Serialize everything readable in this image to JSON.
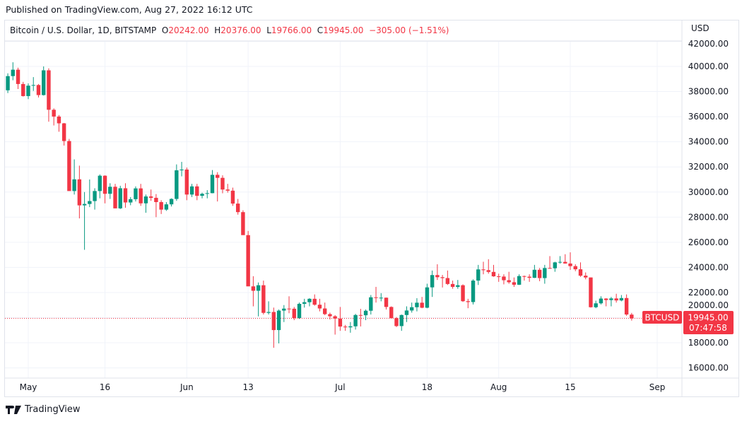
{
  "published": "Published on TradingView.com, Aug 27, 2022 16:12 UTC",
  "legend": {
    "symbol": "Bitcoin / U.S. Dollar, 1D, BITSTAMP",
    "o_label": "O",
    "o": "20242.00",
    "h_label": "H",
    "h": "20376.00",
    "l_label": "L",
    "l": "19766.00",
    "c_label": "C",
    "c": "19945.00",
    "change": "−305.00 (−1.51%)"
  },
  "currency": "USD",
  "price_tag": {
    "symbol": "BTCUSD",
    "price": "19945.00",
    "countdown": "07:47:58"
  },
  "brand": "TradingView",
  "colors": {
    "up": "#089981",
    "down": "#f23645",
    "grid": "#f0f3fa",
    "text": "#131722"
  },
  "chart_data": {
    "type": "candlestick",
    "interval": "1D",
    "ylim": [
      16000,
      42000
    ],
    "y_ticks": [
      "16000.00",
      "18000.00",
      "20000.00",
      "22000.00",
      "24000.00",
      "26000.00",
      "28000.00",
      "30000.00",
      "32000.00",
      "34000.00",
      "36000.00",
      "38000.00",
      "40000.00",
      "42000.00"
    ],
    "x_ticks": [
      {
        "label": "May",
        "date": "2022-05-01"
      },
      {
        "label": "16",
        "date": "2022-05-16"
      },
      {
        "label": "Jun",
        "date": "2022-06-01"
      },
      {
        "label": "13",
        "date": "2022-06-13"
      },
      {
        "label": "Jul",
        "date": "2022-07-01"
      },
      {
        "label": "18",
        "date": "2022-07-18"
      },
      {
        "label": "Aug",
        "date": "2022-08-01"
      },
      {
        "label": "15",
        "date": "2022-08-15"
      },
      {
        "label": "Sep",
        "date": "2022-09-01"
      }
    ],
    "last_price": 19945,
    "columns": [
      "date",
      "open",
      "high",
      "low",
      "close"
    ],
    "candles": [
      [
        "2022-04-26",
        40430,
        40800,
        37800,
        38100
      ],
      [
        "2022-04-27",
        38100,
        39450,
        37880,
        39230
      ],
      [
        "2022-04-28",
        39230,
        40330,
        38900,
        39740
      ],
      [
        "2022-04-29",
        39740,
        39900,
        38200,
        38600
      ],
      [
        "2022-04-30",
        38600,
        38770,
        37600,
        37640
      ],
      [
        "2022-05-01",
        37640,
        38650,
        37400,
        38470
      ],
      [
        "2022-05-02",
        38470,
        39150,
        38050,
        38520
      ],
      [
        "2022-05-03",
        38520,
        38600,
        37530,
        37720
      ],
      [
        "2022-05-04",
        37720,
        40000,
        37680,
        39690
      ],
      [
        "2022-05-05",
        39690,
        39850,
        35600,
        36550
      ],
      [
        "2022-05-06",
        36550,
        36660,
        35300,
        36010
      ],
      [
        "2022-05-07",
        36010,
        36130,
        34800,
        35470
      ],
      [
        "2022-05-08",
        35470,
        35500,
        33700,
        34060
      ],
      [
        "2022-05-09",
        34060,
        34230,
        30100,
        30080
      ],
      [
        "2022-05-10",
        30080,
        32600,
        29800,
        31010
      ],
      [
        "2022-05-11",
        31010,
        32100,
        27900,
        28940
      ],
      [
        "2022-05-12",
        28940,
        30000,
        25400,
        29050
      ],
      [
        "2022-05-13",
        29050,
        31000,
        28800,
        29280
      ],
      [
        "2022-05-14",
        29280,
        30300,
        28600,
        30080
      ],
      [
        "2022-05-15",
        30080,
        31400,
        29500,
        31300
      ],
      [
        "2022-05-16",
        31300,
        31330,
        29100,
        29860
      ],
      [
        "2022-05-17",
        29860,
        30700,
        29450,
        30420
      ],
      [
        "2022-05-18",
        30420,
        30650,
        28700,
        28700
      ],
      [
        "2022-05-19",
        28700,
        30500,
        28650,
        30300
      ],
      [
        "2022-05-20",
        30300,
        30700,
        28750,
        29170
      ],
      [
        "2022-05-21",
        29170,
        29600,
        28950,
        29430
      ],
      [
        "2022-05-22",
        29430,
        30450,
        29250,
        30290
      ],
      [
        "2022-05-23",
        30290,
        30650,
        28900,
        29100
      ],
      [
        "2022-05-24",
        29100,
        29800,
        28350,
        29650
      ],
      [
        "2022-05-25",
        29650,
        30200,
        29300,
        29540
      ],
      [
        "2022-05-26",
        29540,
        29840,
        28000,
        29200
      ],
      [
        "2022-05-27",
        29200,
        29350,
        28250,
        28600
      ],
      [
        "2022-05-28",
        28600,
        29200,
        28500,
        29020
      ],
      [
        "2022-05-29",
        29020,
        29500,
        28850,
        29450
      ],
      [
        "2022-05-30",
        29450,
        32200,
        29300,
        31730
      ],
      [
        "2022-05-31",
        31730,
        32400,
        31250,
        31790
      ],
      [
        "2022-06-01",
        31790,
        31950,
        29350,
        29800
      ],
      [
        "2022-06-02",
        29800,
        30650,
        29600,
        30450
      ],
      [
        "2022-06-03",
        30450,
        30650,
        29350,
        29700
      ],
      [
        "2022-06-04",
        29700,
        29950,
        29500,
        29860
      ],
      [
        "2022-06-05",
        29860,
        30150,
        29500,
        29910
      ],
      [
        "2022-06-06",
        29910,
        31750,
        29900,
        31370
      ],
      [
        "2022-06-07",
        31370,
        31580,
        29250,
        31130
      ],
      [
        "2022-06-08",
        31130,
        31330,
        29900,
        30200
      ],
      [
        "2022-06-09",
        30200,
        30650,
        29950,
        30110
      ],
      [
        "2022-06-10",
        30110,
        30350,
        28900,
        29080
      ],
      [
        "2022-06-11",
        29080,
        29450,
        28200,
        28400
      ],
      [
        "2022-06-12",
        28400,
        28550,
        26600,
        26570
      ],
      [
        "2022-06-13",
        26570,
        26900,
        22650,
        22490
      ],
      [
        "2022-06-14",
        22490,
        23300,
        20900,
        22140
      ],
      [
        "2022-06-15",
        22140,
        22800,
        20100,
        22580
      ],
      [
        "2022-06-16",
        22580,
        22950,
        20250,
        20380
      ],
      [
        "2022-06-17",
        20380,
        21300,
        20250,
        20450
      ],
      [
        "2022-06-18",
        20450,
        20800,
        17600,
        19010
      ],
      [
        "2022-06-19",
        19010,
        20650,
        17950,
        20560
      ],
      [
        "2022-06-20",
        20560,
        21000,
        19650,
        20720
      ],
      [
        "2022-06-21",
        20720,
        21700,
        20350,
        20710
      ],
      [
        "2022-06-22",
        20710,
        20850,
        19800,
        19970
      ],
      [
        "2022-06-23",
        19970,
        21200,
        19900,
        21100
      ],
      [
        "2022-06-24",
        21100,
        21500,
        20800,
        21230
      ],
      [
        "2022-06-25",
        21230,
        21550,
        20900,
        21500
      ],
      [
        "2022-06-26",
        21500,
        21850,
        20950,
        21030
      ],
      [
        "2022-06-27",
        21030,
        21500,
        20500,
        20730
      ],
      [
        "2022-06-28",
        20730,
        21200,
        20200,
        20280
      ],
      [
        "2022-06-29",
        20280,
        20400,
        19850,
        20110
      ],
      [
        "2022-06-30",
        20110,
        20200,
        18650,
        19930
      ],
      [
        "2022-07-01",
        19930,
        20850,
        18950,
        19290
      ],
      [
        "2022-07-02",
        19290,
        19420,
        18950,
        19230
      ],
      [
        "2022-07-03",
        19230,
        19650,
        18800,
        19310
      ],
      [
        "2022-07-04",
        19310,
        20300,
        19050,
        20210
      ],
      [
        "2022-07-05",
        20210,
        20700,
        19300,
        20190
      ],
      [
        "2022-07-06",
        20190,
        20650,
        19800,
        20550
      ],
      [
        "2022-07-07",
        20550,
        21800,
        20250,
        21620
      ],
      [
        "2022-07-08",
        21620,
        22450,
        21200,
        21580
      ],
      [
        "2022-07-09",
        21580,
        21950,
        21300,
        21590
      ],
      [
        "2022-07-10",
        21590,
        21600,
        20650,
        20850
      ],
      [
        "2022-07-11",
        20850,
        20900,
        19950,
        19960
      ],
      [
        "2022-07-12",
        19960,
        20050,
        19250,
        19330
      ],
      [
        "2022-07-13",
        19330,
        20250,
        18950,
        20210
      ],
      [
        "2022-07-14",
        20210,
        20900,
        19650,
        20570
      ],
      [
        "2022-07-15",
        20570,
        21200,
        20400,
        20830
      ],
      [
        "2022-07-16",
        20830,
        21550,
        20500,
        21190
      ],
      [
        "2022-07-17",
        21190,
        21650,
        20750,
        20790
      ],
      [
        "2022-07-18",
        20790,
        22700,
        20750,
        22410
      ],
      [
        "2022-07-19",
        22410,
        23750,
        21650,
        23390
      ],
      [
        "2022-07-20",
        23390,
        24250,
        23000,
        23220
      ],
      [
        "2022-07-21",
        23220,
        23400,
        22400,
        23150
      ],
      [
        "2022-07-22",
        23150,
        23750,
        22600,
        22680
      ],
      [
        "2022-07-23",
        22680,
        22950,
        22300,
        22450
      ],
      [
        "2022-07-24",
        22450,
        23000,
        22300,
        22580
      ],
      [
        "2022-07-25",
        22580,
        22650,
        21250,
        21310
      ],
      [
        "2022-07-26",
        21310,
        21500,
        20750,
        21240
      ],
      [
        "2022-07-27",
        21240,
        23050,
        21050,
        22950
      ],
      [
        "2022-07-28",
        22950,
        24200,
        22600,
        23840
      ],
      [
        "2022-07-29",
        23840,
        24450,
        23450,
        23780
      ],
      [
        "2022-07-30",
        23780,
        24650,
        23500,
        23640
      ],
      [
        "2022-07-31",
        23640,
        24200,
        23250,
        23290
      ],
      [
        "2022-08-01",
        23290,
        23500,
        22850,
        23270
      ],
      [
        "2022-08-02",
        23270,
        23450,
        22650,
        22980
      ],
      [
        "2022-08-03",
        22980,
        23650,
        22700,
        22820
      ],
      [
        "2022-08-04",
        22820,
        23200,
        22450,
        22620
      ],
      [
        "2022-08-05",
        22620,
        23450,
        22600,
        23310
      ],
      [
        "2022-08-06",
        23310,
        23350,
        22950,
        23260
      ],
      [
        "2022-08-07",
        23260,
        23450,
        22850,
        23170
      ],
      [
        "2022-08-08",
        23170,
        24200,
        23150,
        23810
      ],
      [
        "2022-08-09",
        23810,
        23950,
        22900,
        23150
      ],
      [
        "2022-08-10",
        23150,
        24200,
        22700,
        23950
      ],
      [
        "2022-08-11",
        23950,
        24900,
        23900,
        23930
      ],
      [
        "2022-08-12",
        23930,
        24450,
        23650,
        24400
      ],
      [
        "2022-08-13",
        24400,
        24900,
        24300,
        24440
      ],
      [
        "2022-08-14",
        24440,
        25050,
        24300,
        24310
      ],
      [
        "2022-08-15",
        24310,
        25200,
        23800,
        24100
      ],
      [
        "2022-08-16",
        24100,
        24250,
        23700,
        23850
      ],
      [
        "2022-08-17",
        23850,
        24400,
        23250,
        23340
      ],
      [
        "2022-08-18",
        23340,
        23600,
        23050,
        23200
      ],
      [
        "2022-08-19",
        23200,
        23200,
        20800,
        20830
      ],
      [
        "2022-08-20",
        20830,
        21350,
        20750,
        21140
      ],
      [
        "2022-08-21",
        21140,
        21700,
        21050,
        21520
      ],
      [
        "2022-08-22",
        21520,
        21550,
        20900,
        21400
      ],
      [
        "2022-08-23",
        21400,
        21650,
        20900,
        21530
      ],
      [
        "2022-08-24",
        21530,
        21900,
        21200,
        21370
      ],
      [
        "2022-08-25",
        21370,
        21800,
        21300,
        21560
      ],
      [
        "2022-08-26",
        21560,
        21850,
        20150,
        20250
      ],
      [
        "2022-08-27",
        20242,
        20376,
        19766,
        19945
      ]
    ]
  }
}
